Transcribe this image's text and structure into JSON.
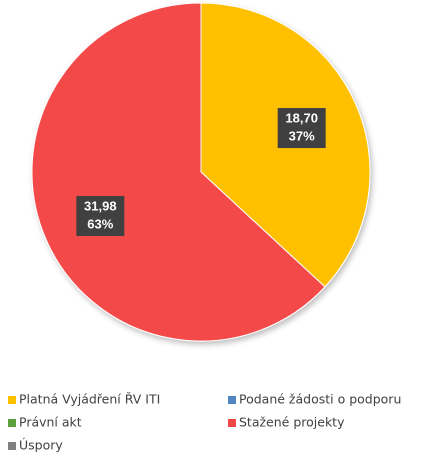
{
  "chart_data": {
    "type": "pie",
    "categories": [
      "Platná Vyjádření ŘV ITI",
      "Podané žádosti o podporu",
      "Právní akt",
      "Stažené projekty",
      "Úspory"
    ],
    "values": [
      18.7,
      0,
      0,
      31.98,
      0
    ],
    "value_labels": [
      "18,70",
      null,
      null,
      "31,98",
      null
    ],
    "percents": [
      37,
      null,
      null,
      63,
      null
    ],
    "percent_labels": [
      "37%",
      null,
      null,
      "63%",
      null
    ],
    "colors": [
      "#ffc000",
      "#4f86c6",
      "#5aa03c",
      "#f44848",
      "#7f7f7f"
    ],
    "legend": "bottom"
  }
}
